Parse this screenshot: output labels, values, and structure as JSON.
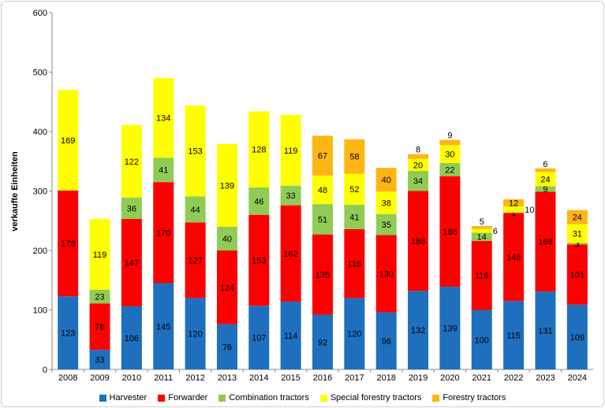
{
  "chart_data": {
    "type": "bar",
    "stacked": true,
    "title": "",
    "xlabel": "",
    "ylabel": "verkaufte Einheiten",
    "ylim": [
      0,
      600
    ],
    "yticks": [
      0,
      100,
      200,
      300,
      400,
      500,
      600
    ],
    "grid": false,
    "legend_position": "bottom",
    "categories": [
      "2008",
      "2009",
      "2010",
      "2011",
      "2012",
      "2013",
      "2014",
      "2015",
      "2016",
      "2017",
      "2018",
      "2019",
      "2020",
      "2021",
      "2022",
      "2023",
      "2024"
    ],
    "series": [
      {
        "name": "Harvester",
        "color": "#1f6fbf",
        "values": [
          123,
          33,
          106,
          145,
          120,
          76,
          107,
          114,
          92,
          120,
          96,
          132,
          139,
          100,
          115,
          131,
          109
        ]
      },
      {
        "name": "Forwarder",
        "color": "#ff0000",
        "values": [
          178,
          78,
          147,
          170,
          127,
          124,
          153,
          162,
          135,
          116,
          130,
          168,
          186,
          116,
          148,
          168,
          101
        ]
      },
      {
        "name": "Combination tractors",
        "color": "#8fcc55",
        "values": [
          null,
          23,
          36,
          41,
          44,
          40,
          46,
          33,
          51,
          41,
          35,
          34,
          22,
          14,
          1,
          9,
          3
        ]
      },
      {
        "name": "Special forestry tractors",
        "color": "#ffff00",
        "values": [
          169,
          119,
          122,
          134,
          153,
          139,
          128,
          119,
          48,
          52,
          38,
          20,
          30,
          6,
          10,
          24,
          31
        ]
      },
      {
        "name": "Forestry tractors",
        "color": "#ffb612",
        "values": [
          null,
          null,
          null,
          null,
          null,
          null,
          null,
          null,
          67,
          58,
          40,
          8,
          9,
          5,
          12,
          6,
          24
        ]
      }
    ]
  }
}
